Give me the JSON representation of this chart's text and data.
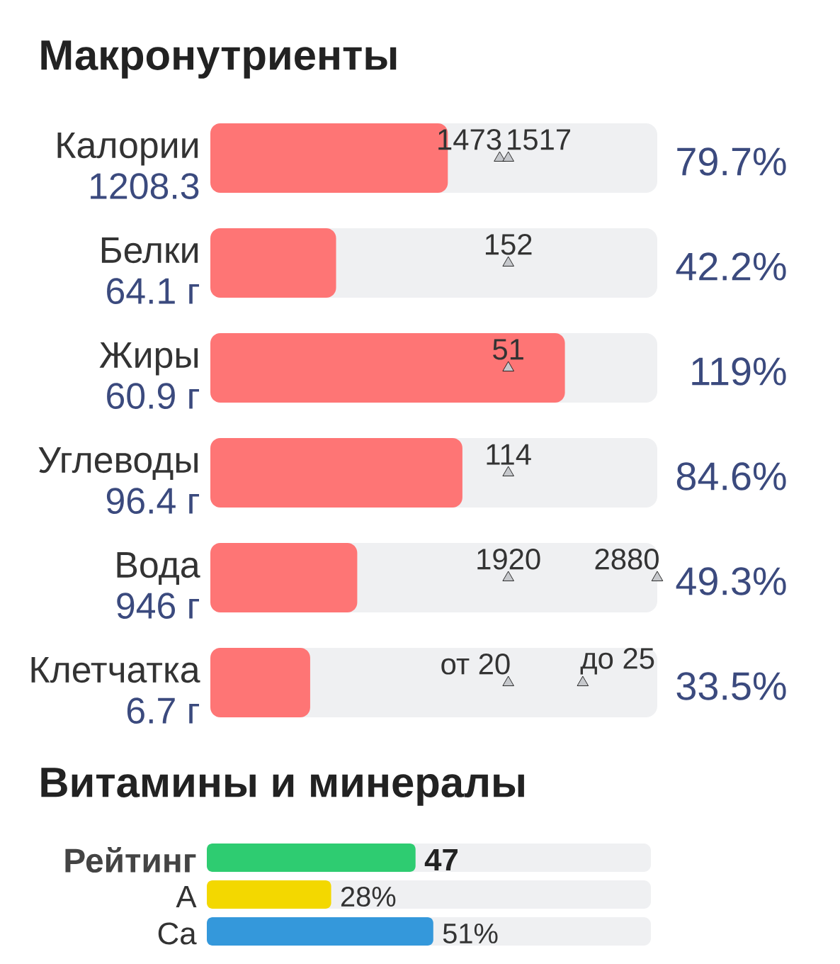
{
  "chart_data": [
    {
      "type": "bar",
      "orientation": "horizontal",
      "title": "Макронутриенты",
      "categories": [
        "Калории\n1208.3",
        "Белки\n64.1 г",
        "Жиры\n60.9 г",
        "Углеводы\n96.4 г",
        "Вода\n946 г",
        "Клетчатка\n6.7 г"
      ],
      "xlim": [
        0,
        150
      ],
      "tick_labels": "y",
      "series": [
        {
          "type": "bar",
          "color": "#fe7575",
          "values": [
            79.7,
            42.2,
            119,
            84.6,
            49.3,
            33.5
          ],
          "value_labels": [
            "79.7%",
            "42.2%",
            "119%",
            "84.6%",
            "49.3%",
            "33.5%"
          ]
        },
        {
          "type": "scatter",
          "marker": "triangle",
          "color": "#c6c8cc",
          "values": [
            97.1,
            null,
            null,
            null,
            100,
            100
          ]
        },
        {
          "type": "scatter",
          "marker": "triangle",
          "color": "#c6c8cc",
          "values": [
            100,
            100,
            100,
            100,
            150,
            125
          ]
        }
      ],
      "annotations": [
        {
          "text": "1473",
          "x": 97.1,
          "y": "Калории\n1208.3"
        },
        {
          "text": "1517",
          "x": 100,
          "y": "Калории\n1208.3"
        },
        {
          "text": "152",
          "x": 100,
          "y": "Белки\n64.1 г"
        },
        {
          "text": "51",
          "x": 100,
          "y": "Жиры\n60.9 г"
        },
        {
          "text": "114",
          "x": 100,
          "y": "Углеводы\n96.4 г"
        },
        {
          "text": "1920",
          "x": 100,
          "y": "Вода\n946 г"
        },
        {
          "text": "2880",
          "x": 150,
          "y": "Вода\n946 г"
        },
        {
          "text": "от 20",
          "x": 100,
          "y": "Клетчатка\n6.7 г"
        },
        {
          "text": "до 25",
          "x": 125,
          "y": "Клетчатка\n6.7 г"
        }
      ]
    },
    {
      "type": "bar",
      "orientation": "horizontal",
      "title": "Витамины и минералы",
      "categories": [
        "Рейтинг",
        "A",
        "Ca"
      ],
      "values": [
        47,
        28,
        51
      ],
      "colors": [
        "#2ecc71",
        "#f3d800",
        "#3498db"
      ],
      "xlim": [
        0,
        100
      ],
      "tick_labels": "y",
      "value_labels": [
        "47",
        "28%",
        "51%"
      ]
    }
  ]
}
